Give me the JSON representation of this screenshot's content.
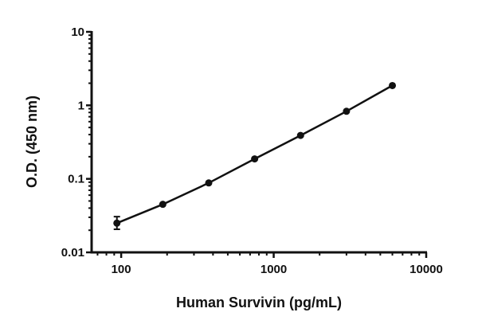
{
  "chart_data": {
    "type": "line",
    "title": "",
    "xlabel": "Human Survivin (pg/mL)",
    "ylabel": "O.D. (450 nm)",
    "xscale": "log",
    "yscale": "log",
    "xlim": [
      64,
      10000
    ],
    "ylim": [
      0.01,
      10
    ],
    "xticks": [
      {
        "value": 100,
        "label": "100"
      },
      {
        "value": 1000,
        "label": "1000"
      },
      {
        "value": 10000,
        "label": "10000"
      }
    ],
    "yticks": [
      {
        "value": 0.01,
        "label": "0.01"
      },
      {
        "value": 0.1,
        "label": "0.1"
      },
      {
        "value": 1,
        "label": "1"
      },
      {
        "value": 10,
        "label": "10"
      }
    ],
    "grid": false,
    "series": [
      {
        "x": [
          93.75,
          187.5,
          375,
          750,
          1500,
          3000,
          6000
        ],
        "y": [
          0.025,
          0.045,
          0.088,
          0.187,
          0.39,
          0.83,
          1.86
        ],
        "error_low": [
          0.0206,
          null,
          null,
          null,
          null,
          null,
          null
        ],
        "error_high": [
          0.0306,
          null,
          null,
          null,
          null,
          null,
          null
        ],
        "color": "#111111",
        "marker": "circle"
      }
    ]
  }
}
